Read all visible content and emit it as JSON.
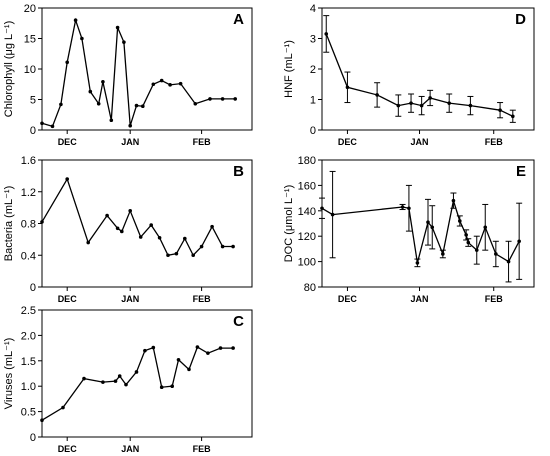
{
  "chart_data": [
    {
      "type": "line",
      "panel_label": "A",
      "ylabel": "Chlorophyll (μg L⁻¹)",
      "ylim": [
        0,
        20
      ],
      "yticks": [
        0,
        5,
        10,
        15,
        20
      ],
      "xticks": [
        {
          "label": "DEC",
          "x": 0.12
        },
        {
          "label": "JAN",
          "x": 0.42
        },
        {
          "label": "FEB",
          "x": 0.76
        }
      ],
      "x": [
        0.0,
        0.05,
        0.09,
        0.12,
        0.16,
        0.19,
        0.23,
        0.27,
        0.29,
        0.33,
        0.36,
        0.39,
        0.42,
        0.45,
        0.48,
        0.53,
        0.57,
        0.61,
        0.66,
        0.73,
        0.8,
        0.86,
        0.92
      ],
      "y": [
        1.1,
        0.6,
        4.2,
        11.1,
        18.0,
        15.0,
        6.3,
        4.3,
        7.9,
        1.6,
        16.8,
        14.4,
        0.7,
        4.0,
        3.9,
        7.5,
        8.1,
        7.4,
        7.6,
        4.3,
        5.1,
        5.1,
        5.1
      ],
      "error_bars": false
    },
    {
      "type": "line",
      "panel_label": "B",
      "ylabel": "Bacteria (mL⁻¹)",
      "ylim": [
        0,
        1.6
      ],
      "yticks": [
        "0",
        "0.4",
        "0.8",
        "1.2",
        "1.6"
      ],
      "xticks": [
        {
          "label": "DEC",
          "x": 0.12
        },
        {
          "label": "JAN",
          "x": 0.42
        },
        {
          "label": "FEB",
          "x": 0.76
        }
      ],
      "x": [
        0.0,
        0.12,
        0.22,
        0.31,
        0.36,
        0.38,
        0.42,
        0.47,
        0.52,
        0.56,
        0.6,
        0.64,
        0.68,
        0.72,
        0.76,
        0.81,
        0.86,
        0.91
      ],
      "y": [
        0.82,
        1.36,
        0.56,
        0.9,
        0.74,
        0.7,
        0.96,
        0.63,
        0.78,
        0.62,
        0.4,
        0.42,
        0.61,
        0.4,
        0.51,
        0.76,
        0.51,
        0.51
      ],
      "error_bars": false
    },
    {
      "type": "line",
      "panel_label": "C",
      "ylabel": "Viruses (mL⁻¹)",
      "ylim": [
        0,
        2.5
      ],
      "yticks": [
        "0",
        "0.5",
        "1.0",
        "1.5",
        "2.0",
        "2.5"
      ],
      "xticks": [
        {
          "label": "DEC",
          "x": 0.12
        },
        {
          "label": "JAN",
          "x": 0.42
        },
        {
          "label": "FEB",
          "x": 0.76
        }
      ],
      "x": [
        0.0,
        0.1,
        0.2,
        0.29,
        0.35,
        0.37,
        0.4,
        0.45,
        0.49,
        0.53,
        0.57,
        0.62,
        0.65,
        0.7,
        0.74,
        0.79,
        0.85,
        0.91
      ],
      "y": [
        0.33,
        0.58,
        1.15,
        1.08,
        1.1,
        1.2,
        1.03,
        1.28,
        1.7,
        1.76,
        0.98,
        1.0,
        1.52,
        1.33,
        1.77,
        1.65,
        1.75,
        1.75
      ],
      "error_bars": false
    },
    {
      "type": "line",
      "panel_label": "D",
      "ylabel": "HNF (mL⁻¹)",
      "ylim": [
        0,
        4
      ],
      "yticks": [
        0,
        1,
        2,
        3,
        4
      ],
      "xticks": [
        {
          "label": "DEC",
          "x": 0.12
        },
        {
          "label": "JAN",
          "x": 0.46
        },
        {
          "label": "FEB",
          "x": 0.81
        }
      ],
      "x": [
        0.02,
        0.12,
        0.26,
        0.36,
        0.42,
        0.47,
        0.51,
        0.6,
        0.7,
        0.84,
        0.9
      ],
      "y": [
        3.15,
        1.4,
        1.15,
        0.8,
        0.88,
        0.8,
        1.05,
        0.88,
        0.8,
        0.65,
        0.45
      ],
      "err": [
        0.6,
        0.5,
        0.4,
        0.35,
        0.3,
        0.3,
        0.25,
        0.3,
        0.3,
        0.25,
        0.2
      ],
      "error_bars": true
    },
    {
      "type": "line",
      "panel_label": "E",
      "ylabel": "DOC (μmol L⁻¹)",
      "ylim": [
        80,
        180
      ],
      "yticks": [
        80,
        100,
        120,
        140,
        160,
        180
      ],
      "xticks": [
        {
          "label": "DEC",
          "x": 0.12
        },
        {
          "label": "JAN",
          "x": 0.46
        },
        {
          "label": "FEB",
          "x": 0.81
        }
      ],
      "x": [
        0.0,
        0.05,
        0.38,
        0.41,
        0.45,
        0.5,
        0.52,
        0.57,
        0.62,
        0.65,
        0.68,
        0.69,
        0.73,
        0.77,
        0.82,
        0.88,
        0.93
      ],
      "y": [
        142,
        137,
        143,
        142,
        99,
        131,
        127,
        106,
        148,
        132,
        121,
        115,
        109,
        127,
        106,
        100,
        116
      ],
      "err": [
        8,
        34,
        2,
        18,
        3,
        18,
        17,
        3,
        6,
        4,
        4,
        3,
        11,
        18,
        10,
        16,
        30
      ],
      "error_bars": true
    }
  ]
}
